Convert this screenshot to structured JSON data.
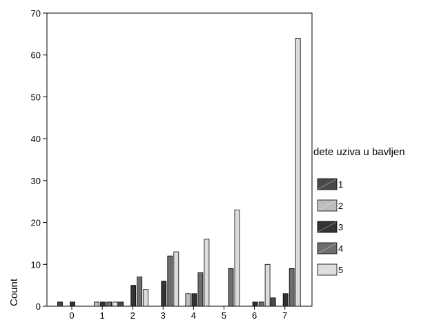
{
  "chart_data": {
    "type": "bar",
    "ylabel": "Count",
    "ylim": [
      0,
      70
    ],
    "yticks": [
      0,
      10,
      20,
      30,
      40,
      50,
      60,
      70
    ],
    "categories": [
      "0",
      "1",
      "2",
      "3",
      "4",
      "5",
      "6",
      "7"
    ],
    "legend": {
      "title": "dete uziva u bavljen",
      "placement": "right"
    },
    "series": [
      {
        "name": "1",
        "color": "#4a4a4a",
        "values": [
          1,
          0,
          1,
          0,
          0,
          0,
          0,
          2
        ]
      },
      {
        "name": "2",
        "color": "#bdbdbd",
        "values": [
          0,
          1,
          0,
          0,
          3,
          0,
          0,
          0
        ]
      },
      {
        "name": "3",
        "color": "#333333",
        "values": [
          1,
          1,
          5,
          6,
          3,
          0,
          1,
          3
        ]
      },
      {
        "name": "4",
        "color": "#6e6e6e",
        "values": [
          0,
          1,
          7,
          12,
          8,
          9,
          1,
          9
        ]
      },
      {
        "name": "5",
        "color": "#dcdcdc",
        "values": [
          0,
          1,
          4,
          13,
          16,
          23,
          10,
          64
        ]
      }
    ]
  }
}
